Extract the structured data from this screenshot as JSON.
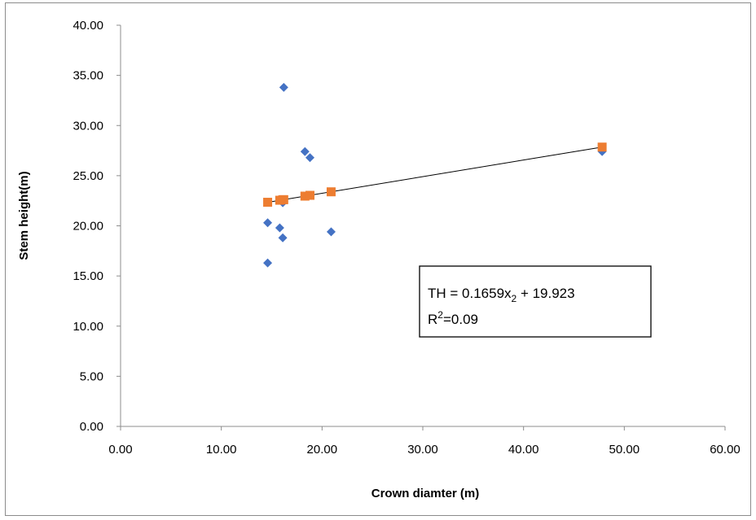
{
  "chart_data": {
    "type": "scatter",
    "xlabel": "Crown diamter (m)",
    "ylabel": "Stem height(m)",
    "xlim": [
      0,
      60
    ],
    "ylim": [
      0,
      40
    ],
    "x_ticks": [
      "0.00",
      "10.00",
      "20.00",
      "30.00",
      "40.00",
      "50.00",
      "60.00"
    ],
    "y_ticks": [
      "0.00",
      "5.00",
      "10.00",
      "15.00",
      "20.00",
      "25.00",
      "30.00",
      "35.00",
      "40.00"
    ],
    "grid": false,
    "series": [
      {
        "marker": "diamond",
        "color": "#4472C4",
        "points": [
          {
            "x": 14.6,
            "y": 16.3
          },
          {
            "x": 14.6,
            "y": 20.3
          },
          {
            "x": 15.8,
            "y": 19.8
          },
          {
            "x": 16.1,
            "y": 18.8
          },
          {
            "x": 16.1,
            "y": 22.3
          },
          {
            "x": 16.2,
            "y": 33.8
          },
          {
            "x": 18.3,
            "y": 27.4
          },
          {
            "x": 18.8,
            "y": 26.8
          },
          {
            "x": 20.9,
            "y": 19.4
          },
          {
            "x": 47.8,
            "y": 27.4
          }
        ]
      },
      {
        "marker": "square",
        "color": "#ED7D31",
        "points": [
          {
            "x": 14.6,
            "y": 22.35
          },
          {
            "x": 15.8,
            "y": 22.55
          },
          {
            "x": 16.1,
            "y": 22.6
          },
          {
            "x": 16.2,
            "y": 22.61
          },
          {
            "x": 18.3,
            "y": 22.96
          },
          {
            "x": 18.8,
            "y": 23.04
          },
          {
            "x": 20.9,
            "y": 23.39
          },
          {
            "x": 47.8,
            "y": 27.85
          }
        ]
      }
    ],
    "trendline": {
      "slope": 0.1659,
      "intercept": 19.923,
      "x_range": [
        14.6,
        47.8
      ],
      "color": "#000000"
    },
    "annotation": {
      "line1_main": "TH = 0.1659x",
      "line1_sub": "2",
      "line1_rest": " + 19.923",
      "line2_main": "R",
      "line2_sup": "2",
      "line2_rest": "=0.09"
    }
  }
}
